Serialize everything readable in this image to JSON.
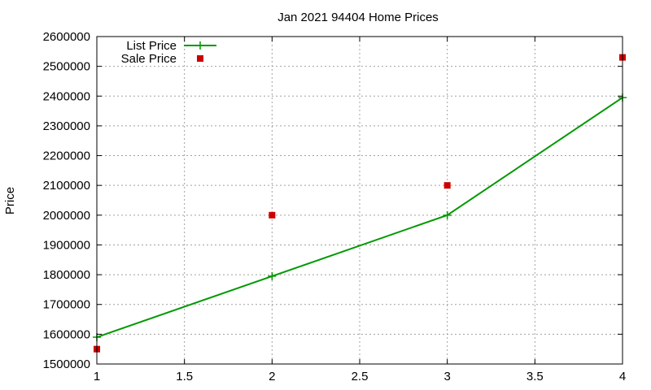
{
  "chart_data": {
    "type": "line",
    "title": "Jan 2021 94404 Home Prices",
    "xlabel": "",
    "ylabel": "Price",
    "xlim": [
      1,
      4
    ],
    "ylim": [
      1500000,
      2600000
    ],
    "x_ticks": [
      "1",
      "1.5",
      "2",
      "2.5",
      "3",
      "3.5",
      "4"
    ],
    "y_ticks": [
      "1500000",
      "1600000",
      "1700000",
      "1800000",
      "1900000",
      "2000000",
      "2100000",
      "2200000",
      "2300000",
      "2400000",
      "2500000",
      "2600000"
    ],
    "grid": true,
    "legend_position": "top-left",
    "series": [
      {
        "name": "List Price",
        "style": "linespoints",
        "marker": "plus",
        "color": "#009900",
        "x": [
          1,
          2,
          3,
          4
        ],
        "y": [
          1590000,
          1795000,
          2000000,
          2395000
        ]
      },
      {
        "name": "Sale Price",
        "style": "points",
        "marker": "square",
        "color": "#cc0000",
        "x": [
          1,
          2,
          3,
          4
        ],
        "y": [
          1550000,
          2000000,
          2100000,
          2530000
        ]
      }
    ]
  }
}
